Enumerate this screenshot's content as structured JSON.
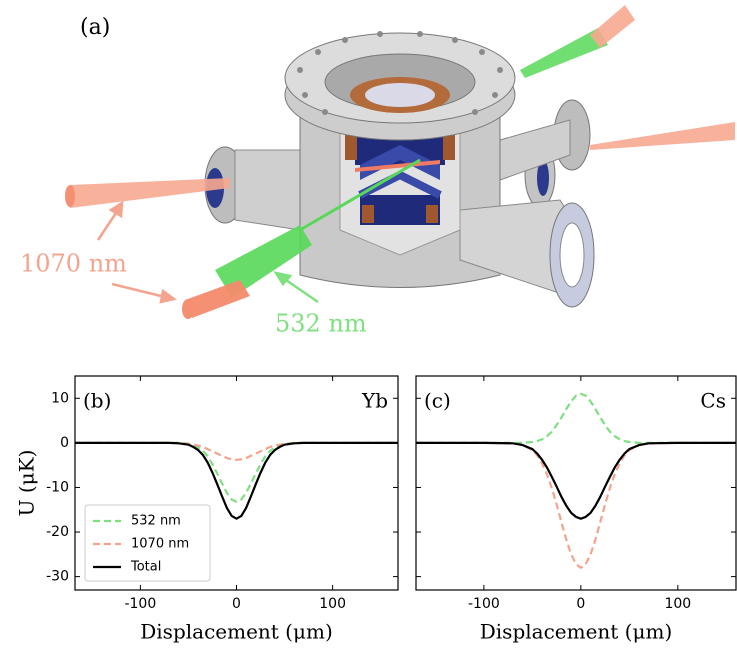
{
  "illustration": {
    "panel_label": "(a)",
    "labels": [
      "1070 nm",
      "532 nm"
    ]
  },
  "chart_data": [
    {
      "type": "line",
      "panel_label": "(b)",
      "annotation": "Yb",
      "xlabel": "Displacement (μm)",
      "ylabel": "U (μK)",
      "x": [
        -170,
        -150,
        -100,
        -70,
        -60,
        -50,
        -45,
        -40,
        -35,
        -30,
        -25,
        -20,
        -15,
        -10,
        -5,
        0,
        5,
        10,
        15,
        20,
        25,
        30,
        35,
        40,
        45,
        50,
        60,
        70,
        100,
        150,
        170
      ],
      "series": [
        {
          "name": "532 nm",
          "color": "#7fe07f",
          "dashed": true,
          "values": [
            0,
            0,
            0,
            0,
            0,
            -0.2,
            -0.5,
            -1.0,
            -1.8,
            -3.0,
            -4.8,
            -6.9,
            -9.1,
            -11.2,
            -12.7,
            -13.2,
            -12.7,
            -11.2,
            -9.1,
            -6.9,
            -4.8,
            -3.0,
            -1.8,
            -1.0,
            -0.5,
            -0.2,
            0,
            0,
            0,
            0,
            0
          ]
        },
        {
          "name": "1070 nm",
          "color": "#f4a48e",
          "dashed": true,
          "values": [
            0,
            0,
            0,
            0,
            -0.1,
            -0.2,
            -0.4,
            -0.6,
            -0.9,
            -1.4,
            -1.9,
            -2.4,
            -2.9,
            -3.4,
            -3.7,
            -3.8,
            -3.7,
            -3.4,
            -2.9,
            -2.4,
            -1.9,
            -1.4,
            -0.9,
            -0.6,
            -0.4,
            -0.2,
            -0.1,
            0,
            0,
            0,
            0
          ]
        },
        {
          "name": "Total",
          "color": "#000000",
          "dashed": false,
          "values": [
            0,
            0,
            0,
            0,
            -0.1,
            -0.4,
            -0.9,
            -1.6,
            -2.7,
            -4.4,
            -6.7,
            -9.3,
            -12.0,
            -14.6,
            -16.4,
            -17.0,
            -16.4,
            -14.6,
            -12.0,
            -9.3,
            -6.7,
            -4.4,
            -2.7,
            -1.6,
            -0.9,
            -0.4,
            -0.1,
            0,
            0,
            0,
            0
          ]
        }
      ],
      "xlim": [
        -168,
        168
      ],
      "ylim": [
        -33,
        15
      ],
      "xticks": [
        -100,
        0,
        100
      ],
      "yticks": [
        -30,
        -20,
        -10,
        0,
        10
      ],
      "ytick_labels": true,
      "legend": "lower left"
    },
    {
      "type": "line",
      "panel_label": "(c)",
      "annotation": "Cs",
      "xlabel": "Displacement (μm)",
      "x": [
        -170,
        -150,
        -100,
        -70,
        -60,
        -50,
        -45,
        -40,
        -35,
        -30,
        -25,
        -20,
        -15,
        -10,
        -5,
        0,
        5,
        10,
        15,
        20,
        25,
        30,
        35,
        40,
        45,
        50,
        60,
        70,
        100,
        150,
        170
      ],
      "series": [
        {
          "color": "#7fe07f",
          "dashed": true,
          "values": [
            0,
            0,
            0,
            0,
            0,
            0.2,
            0.4,
            0.8,
            1.5,
            2.5,
            4.0,
            5.7,
            7.6,
            9.3,
            10.6,
            11,
            10.6,
            9.3,
            7.6,
            5.7,
            4.0,
            2.5,
            1.5,
            0.8,
            0.4,
            0.2,
            0,
            0,
            0,
            0,
            0
          ]
        },
        {
          "color": "#f4a48e",
          "dashed": true,
          "values": [
            0,
            0,
            0,
            -0.1,
            -0.5,
            -1.6,
            -2.8,
            -4.6,
            -7.0,
            -10.1,
            -13.8,
            -17.8,
            -21.7,
            -25.0,
            -27.2,
            -28,
            -27.2,
            -25.0,
            -21.7,
            -17.8,
            -13.8,
            -10.1,
            -7.0,
            -4.6,
            -2.8,
            -1.6,
            -0.5,
            -0.1,
            0,
            0,
            0
          ]
        },
        {
          "color": "#000000",
          "dashed": false,
          "values": [
            0,
            0,
            0,
            -0.1,
            -0.5,
            -1.4,
            -2.4,
            -3.8,
            -5.5,
            -7.6,
            -9.8,
            -12.1,
            -14.1,
            -15.7,
            -16.6,
            -17.0,
            -16.6,
            -15.7,
            -14.1,
            -12.1,
            -9.8,
            -7.6,
            -5.5,
            -3.8,
            -2.4,
            -1.4,
            -0.5,
            -0.1,
            0,
            0,
            0
          ]
        }
      ],
      "xlim": [
        -170,
        160
      ],
      "ylim": [
        -33,
        15
      ],
      "xticks": [
        -100,
        0,
        100
      ],
      "yticks": [
        -30,
        -20,
        -10,
        0,
        10
      ],
      "ytick_labels": false
    }
  ]
}
